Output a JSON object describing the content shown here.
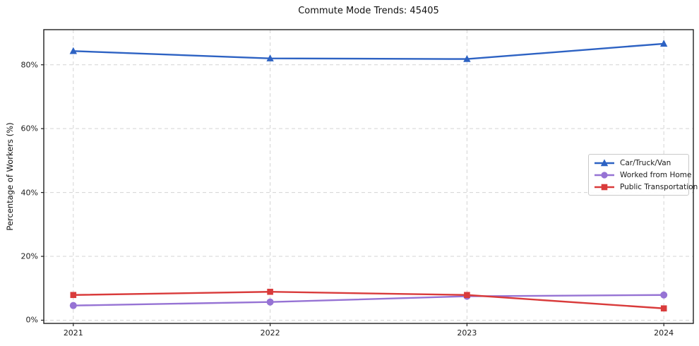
{
  "chart_data": {
    "type": "line",
    "title": "Commute Mode Trends: 45405",
    "xlabel": "",
    "ylabel": "Percentage of Workers (%)",
    "x": [
      2021,
      2022,
      2023,
      2024
    ],
    "x_tick_labels": [
      "2021",
      "2022",
      "2023",
      "2024"
    ],
    "y_ticks": [
      0,
      20,
      40,
      60,
      80
    ],
    "y_tick_labels": [
      "0%",
      "20%",
      "40%",
      "60%",
      "80%"
    ],
    "xlim": [
      2020.85,
      2024.15
    ],
    "ylim": [
      -1,
      91
    ],
    "grid": true,
    "grid_style": "dashed",
    "legend_position": "center-right",
    "colors": {
      "grid": "#d4d4d4",
      "spine": "#1f1f1f",
      "background": "#ffffff"
    },
    "series": [
      {
        "name": "Car/Truck/Van",
        "color": "#2d62c3",
        "marker": "triangle",
        "values": [
          84.3,
          82.0,
          81.8,
          86.6
        ]
      },
      {
        "name": "Worked from Home",
        "color": "#9673d4",
        "marker": "circle",
        "values": [
          4.6,
          5.7,
          7.5,
          7.9
        ]
      },
      {
        "name": "Public Transportation",
        "color": "#d93b3b",
        "marker": "square",
        "values": [
          7.9,
          8.9,
          7.9,
          3.7
        ]
      }
    ]
  }
}
